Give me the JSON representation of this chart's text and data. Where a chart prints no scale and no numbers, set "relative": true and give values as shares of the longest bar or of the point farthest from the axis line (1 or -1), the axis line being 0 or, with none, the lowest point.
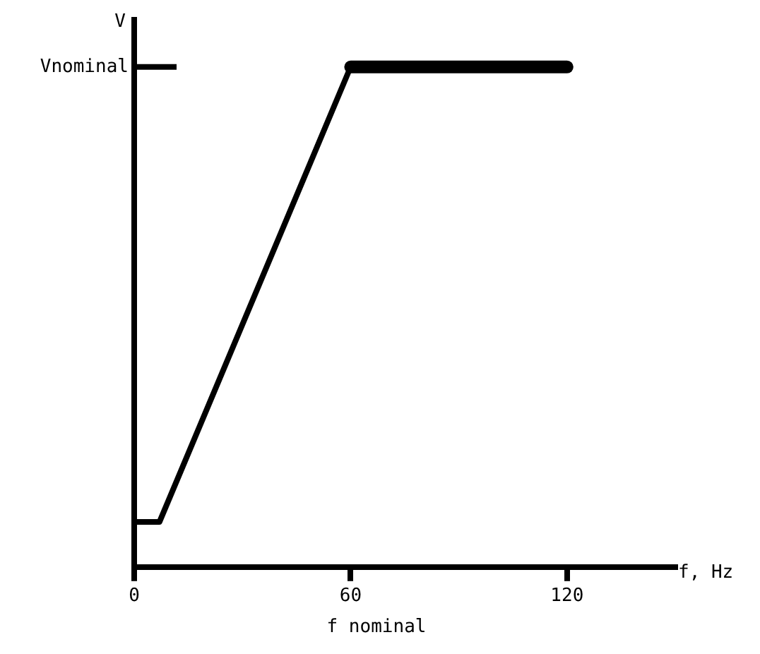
{
  "chart_data": {
    "type": "line",
    "xlabel": "f, Hz",
    "ylabel": "V",
    "relative": true,
    "xlim": [
      0,
      150
    ],
    "xticks": [
      0,
      60,
      120
    ],
    "grid": false,
    "legend": false,
    "marker": "none",
    "line_style": "solid",
    "series": [
      {
        "color": "#000000",
        "x": [
          0,
          7,
          60,
          120
        ],
        "values": [
          0.09,
          0.09,
          1,
          1
        ]
      }
    ],
    "annotations": [
      "Vnominal",
      "f nominal"
    ]
  }
}
